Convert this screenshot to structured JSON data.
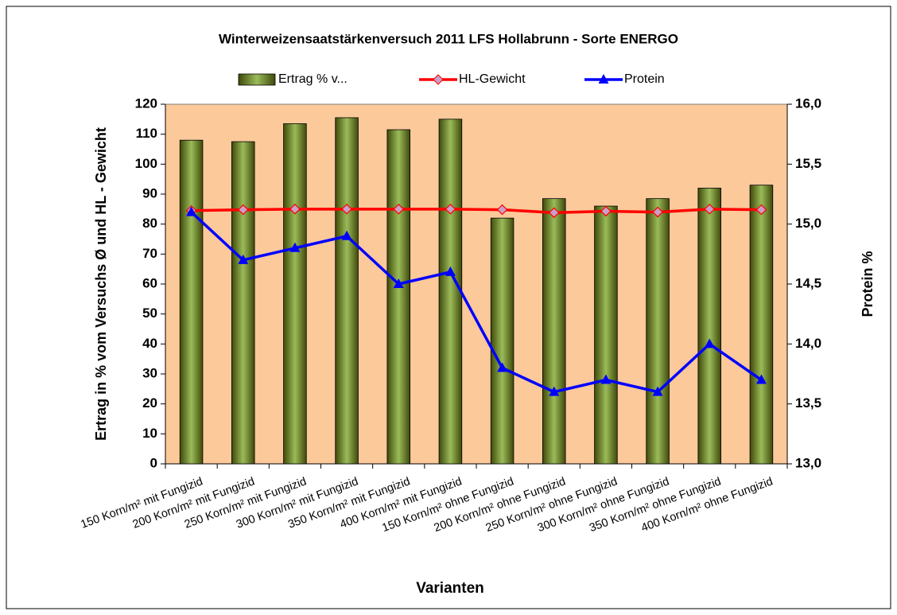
{
  "chart_data": {
    "type": "bar_line",
    "title": "Winterweizensaatstärkenversuch 2011 LFS Hollabrunn - Sorte ENERGO",
    "x_label": "Varianten",
    "y_label": "Ertrag in % vom Versuchs Ø und HL - Gewicht",
    "y2_label": "Protein %",
    "categories": [
      "150 Korn/m² mit Fungizid",
      "200 Korn/m² mit Fungizid",
      "250 Korn/m² mit Fungizid",
      "300 Korn/m² mit Fungizid",
      "350 Korn/m² mit Fungizid",
      "400 Korn/m² mit Fungizid",
      "150  Korn/m² ohne Fungizid",
      "200 Korn/m² ohne Fungizid",
      "250 Korn/m² ohne Fungizid",
      "300 Korn/m² ohne Fungizid",
      "350 Korn/m² ohne Fungizid",
      "400 Korn/m² ohne Fungizid"
    ],
    "series": [
      {
        "name": "Ertrag % v...",
        "kind": "bar",
        "color": "#9BBB59",
        "values": [
          108,
          107.5,
          113.5,
          115.5,
          111.5,
          115,
          82,
          88.5,
          86,
          88.5,
          92,
          93
        ]
      },
      {
        "name": "HL-Gewicht",
        "kind": "line",
        "marker": "diamond",
        "color": "#FF0000",
        "values": [
          84.5,
          84.8,
          85,
          85,
          85,
          85,
          84.8,
          83.8,
          84.3,
          84,
          85,
          84.8
        ]
      },
      {
        "name": "Protein",
        "kind": "line",
        "marker": "triangle",
        "color": "#0000FF",
        "axis": "y2",
        "values": [
          15.1,
          14.7,
          14.8,
          14.9,
          14.5,
          14.6,
          13.8,
          13.6,
          13.7,
          13.6,
          14.0,
          13.7
        ]
      }
    ],
    "ylim": [
      0,
      120
    ],
    "yticks": [
      0,
      10,
      20,
      30,
      40,
      50,
      60,
      70,
      80,
      90,
      100,
      110,
      120
    ],
    "y2lim": [
      13,
      16
    ],
    "y2ticks": [
      {
        "value": 13,
        "label": "13,0"
      },
      {
        "value": 13.5,
        "label": "13,5"
      },
      {
        "value": 14,
        "label": "14,0"
      },
      {
        "value": 14.5,
        "label": "14,5"
      },
      {
        "value": 15,
        "label": "15,0"
      },
      {
        "value": 15.5,
        "label": "15,5"
      },
      {
        "value": 16,
        "label": "16,0"
      }
    ],
    "legend": "top",
    "plot_background": "#FBC99A"
  }
}
